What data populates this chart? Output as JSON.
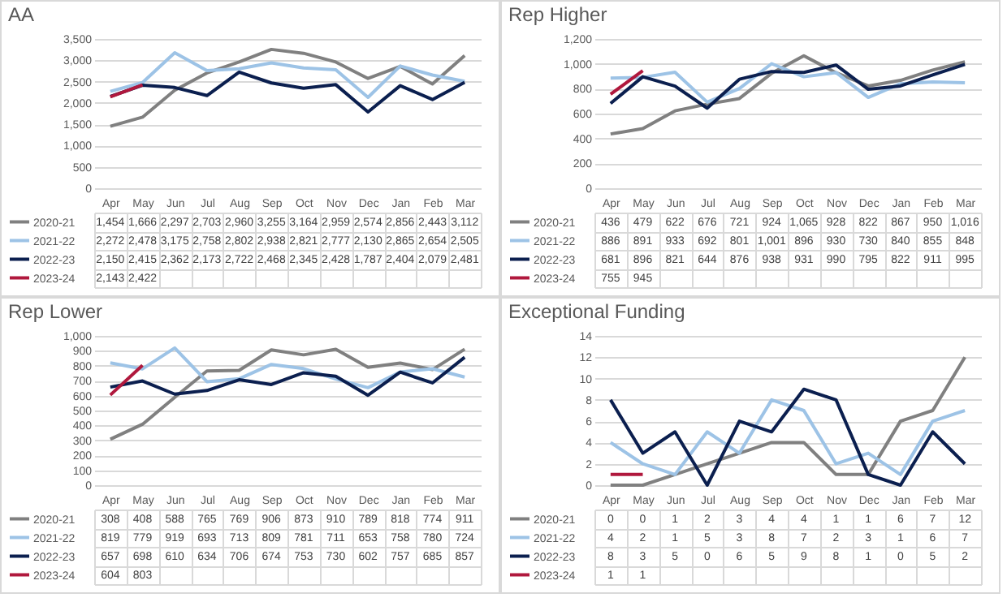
{
  "chart_data": [
    {
      "type": "line",
      "title": "AA",
      "categories": [
        "Apr",
        "May",
        "Jun",
        "Jul",
        "Aug",
        "Sep",
        "Oct",
        "Nov",
        "Dec",
        "Jan",
        "Feb",
        "Mar"
      ],
      "ylim": [
        0,
        3500
      ],
      "yticks": [
        0,
        500,
        {
          "value": 1000,
          "label": "1,000"
        },
        {
          "value": 1500,
          "label": "1,500"
        },
        {
          "value": 2000,
          "label": "2,000"
        },
        {
          "value": 2500,
          "label": "2,500"
        },
        {
          "value": 3000,
          "label": "3,000"
        },
        {
          "value": 3500,
          "label": "3,500"
        }
      ],
      "grid": "y",
      "legend": "bottom",
      "series": [
        {
          "name": "2020-21",
          "color": "#808080",
          "values": [
            1454,
            1666,
            2297,
            2703,
            2960,
            3255,
            3164,
            2959,
            2574,
            2856,
            2443,
            3112
          ],
          "value_labels": [
            "1,454",
            "1,666",
            "2,297",
            "2,703",
            "2,960",
            "3,255",
            "3,164",
            "2,959",
            "2,574",
            "2,856",
            "2,443",
            "3,112"
          ]
        },
        {
          "name": "2021-22",
          "color": "#9dc3e6",
          "values": [
            2272,
            2478,
            3175,
            2758,
            2802,
            2938,
            2821,
            2777,
            2130,
            2865,
            2654,
            2505
          ],
          "value_labels": [
            "2,272",
            "2,478",
            "3,175",
            "2,758",
            "2,802",
            "2,938",
            "2,821",
            "2,777",
            "2,130",
            "2,865",
            "2,654",
            "2,505"
          ]
        },
        {
          "name": "2022-23",
          "color": "#0b1f4f",
          "values": [
            2150,
            2415,
            2362,
            2173,
            2722,
            2468,
            2345,
            2428,
            1787,
            2404,
            2079,
            2481
          ],
          "value_labels": [
            "2,150",
            "2,415",
            "2,362",
            "2,173",
            "2,722",
            "2,468",
            "2,345",
            "2,428",
            "1,787",
            "2,404",
            "2,079",
            "2,481"
          ]
        },
        {
          "name": "2023-24",
          "color": "#b0183d",
          "values": [
            2143,
            2422,
            null,
            null,
            null,
            null,
            null,
            null,
            null,
            null,
            null,
            null
          ],
          "value_labels": [
            "2,143",
            "2,422",
            null,
            null,
            null,
            null,
            null,
            null,
            null,
            null,
            null,
            null
          ]
        }
      ]
    },
    {
      "type": "line",
      "title": "Rep Higher",
      "categories": [
        "Apr",
        "May",
        "Jun",
        "Jul",
        "Aug",
        "Sep",
        "Oct",
        "Nov",
        "Dec",
        "Jan",
        "Feb",
        "Mar"
      ],
      "ylim": [
        0,
        1200
      ],
      "yticks": [
        0,
        200,
        400,
        600,
        800,
        {
          "value": 1000,
          "label": "1,000"
        },
        {
          "value": 1200,
          "label": "1,200"
        }
      ],
      "grid": "y",
      "legend": "bottom",
      "series": [
        {
          "name": "2020-21",
          "color": "#808080",
          "values": [
            436,
            479,
            622,
            676,
            721,
            924,
            1065,
            928,
            822,
            867,
            950,
            1016
          ],
          "value_labels": [
            "436",
            "479",
            "622",
            "676",
            "721",
            "924",
            "1,065",
            "928",
            "822",
            "867",
            "950",
            "1,016"
          ]
        },
        {
          "name": "2021-22",
          "color": "#9dc3e6",
          "values": [
            886,
            891,
            933,
            692,
            801,
            1001,
            896,
            930,
            730,
            840,
            855,
            848
          ],
          "value_labels": [
            "886",
            "891",
            "933",
            "692",
            "801",
            "1,001",
            "896",
            "930",
            "730",
            "840",
            "855",
            "848"
          ]
        },
        {
          "name": "2022-23",
          "color": "#0b1f4f",
          "values": [
            681,
            896,
            821,
            644,
            876,
            938,
            931,
            990,
            795,
            822,
            911,
            995
          ],
          "value_labels": [
            "681",
            "896",
            "821",
            "644",
            "876",
            "938",
            "931",
            "990",
            "795",
            "822",
            "911",
            "995"
          ]
        },
        {
          "name": "2023-24",
          "color": "#b0183d",
          "values": [
            755,
            945,
            null,
            null,
            null,
            null,
            null,
            null,
            null,
            null,
            null,
            null
          ],
          "value_labels": [
            "755",
            "945",
            null,
            null,
            null,
            null,
            null,
            null,
            null,
            null,
            null,
            null
          ]
        }
      ]
    },
    {
      "type": "line",
      "title": "Rep Lower",
      "categories": [
        "Apr",
        "May",
        "Jun",
        "Jul",
        "Aug",
        "Sep",
        "Oct",
        "Nov",
        "Dec",
        "Jan",
        "Feb",
        "Mar"
      ],
      "ylim": [
        0,
        1000
      ],
      "yticks": [
        0,
        100,
        200,
        300,
        400,
        500,
        600,
        700,
        800,
        900,
        {
          "value": 1000,
          "label": "1,000"
        }
      ],
      "grid": "y",
      "legend": "bottom",
      "series": [
        {
          "name": "2020-21",
          "color": "#808080",
          "values": [
            308,
            408,
            588,
            765,
            769,
            906,
            873,
            910,
            789,
            818,
            774,
            911
          ],
          "value_labels": [
            "308",
            "408",
            "588",
            "765",
            "769",
            "906",
            "873",
            "910",
            "789",
            "818",
            "774",
            "911"
          ]
        },
        {
          "name": "2021-22",
          "color": "#9dc3e6",
          "values": [
            819,
            779,
            919,
            693,
            713,
            809,
            781,
            711,
            653,
            758,
            780,
            724
          ],
          "value_labels": [
            "819",
            "779",
            "919",
            "693",
            "713",
            "809",
            "781",
            "711",
            "653",
            "758",
            "780",
            "724"
          ]
        },
        {
          "name": "2022-23",
          "color": "#0b1f4f",
          "values": [
            657,
            698,
            610,
            634,
            706,
            674,
            753,
            730,
            602,
            757,
            685,
            857
          ],
          "value_labels": [
            "657",
            "698",
            "610",
            "634",
            "706",
            "674",
            "753",
            "730",
            "602",
            "757",
            "685",
            "857"
          ]
        },
        {
          "name": "2023-24",
          "color": "#b0183d",
          "values": [
            604,
            803,
            null,
            null,
            null,
            null,
            null,
            null,
            null,
            null,
            null,
            null
          ],
          "value_labels": [
            "604",
            "803",
            null,
            null,
            null,
            null,
            null,
            null,
            null,
            null,
            null,
            null
          ]
        }
      ]
    },
    {
      "type": "line",
      "title": "Exceptional Funding",
      "categories": [
        "Apr",
        "May",
        "Jun",
        "Jul",
        "Aug",
        "Sep",
        "Oct",
        "Nov",
        "Dec",
        "Jan",
        "Feb",
        "Mar"
      ],
      "ylim": [
        0,
        14
      ],
      "yticks": [
        0,
        2,
        4,
        6,
        8,
        10,
        12,
        14
      ],
      "grid": "y",
      "legend": "bottom",
      "series": [
        {
          "name": "2020-21",
          "color": "#808080",
          "values": [
            0,
            0,
            1,
            2,
            3,
            4,
            4,
            1,
            1,
            6,
            7,
            12
          ],
          "value_labels": [
            "0",
            "0",
            "1",
            "2",
            "3",
            "4",
            "4",
            "1",
            "1",
            "6",
            "7",
            "12"
          ]
        },
        {
          "name": "2021-22",
          "color": "#9dc3e6",
          "values": [
            4,
            2,
            1,
            5,
            3,
            8,
            7,
            2,
            3,
            1,
            6,
            7
          ],
          "value_labels": [
            "4",
            "2",
            "1",
            "5",
            "3",
            "8",
            "7",
            "2",
            "3",
            "1",
            "6",
            "7"
          ]
        },
        {
          "name": "2022-23",
          "color": "#0b1f4f",
          "values": [
            8,
            3,
            5,
            0,
            6,
            5,
            9,
            8,
            1,
            0,
            5,
            2
          ],
          "value_labels": [
            "8",
            "3",
            "5",
            "0",
            "6",
            "5",
            "9",
            "8",
            "1",
            "0",
            "5",
            "2"
          ]
        },
        {
          "name": "2023-24",
          "color": "#b0183d",
          "values": [
            1,
            1,
            null,
            null,
            null,
            null,
            null,
            null,
            null,
            null,
            null,
            null
          ],
          "value_labels": [
            "1",
            "1",
            null,
            null,
            null,
            null,
            null,
            null,
            null,
            null,
            null,
            null
          ]
        }
      ]
    }
  ]
}
